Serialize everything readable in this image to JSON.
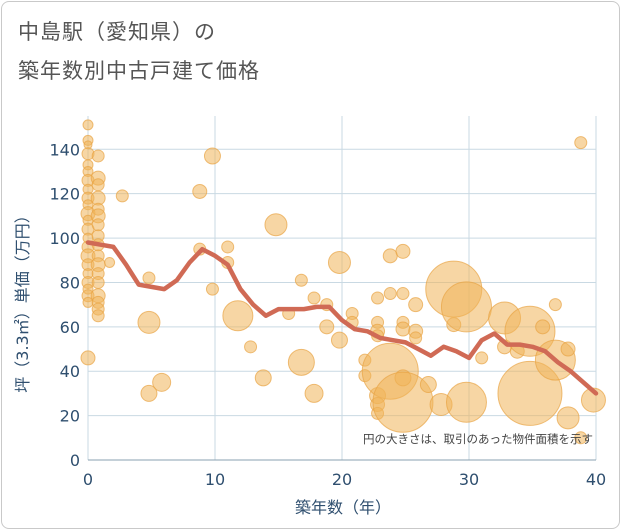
{
  "title": {
    "line1": "中島駅（愛知県）の",
    "line2": "築年数別中古戸建て価格"
  },
  "colors": {
    "bubble": "#f0b45a",
    "bubble_edge": "#e8a445",
    "line": "#d06a55",
    "grid": "#c9d9e3",
    "plot_bg": "#ffffff",
    "axis_text": "#2f4f6f"
  },
  "chart_data": {
    "type": "bubble+line",
    "xlabel": "築年数（年）",
    "ylabel": "坪（3.3㎡）単価（万円）",
    "xlim": [
      0,
      40
    ],
    "ylim": [
      0,
      155
    ],
    "xticks": [
      0,
      10,
      20,
      30,
      40
    ],
    "yticks": [
      0,
      20,
      40,
      60,
      80,
      100,
      120,
      140
    ],
    "annotation": "円の大きさは、取引のあった物件面積を示す",
    "trend": {
      "x": [
        0,
        1,
        2,
        3,
        4,
        5,
        6,
        7,
        8,
        9,
        10,
        11,
        12,
        13,
        14,
        15,
        16,
        17,
        18,
        19,
        20,
        21,
        22,
        23,
        24,
        25,
        26,
        27,
        28,
        29,
        30,
        31,
        32,
        33,
        34,
        35,
        36,
        37,
        38,
        39,
        40
      ],
      "y": [
        98,
        97,
        96,
        88,
        79,
        78,
        77,
        81,
        89,
        95,
        92,
        88,
        77,
        70,
        65,
        68,
        68,
        68,
        69,
        69,
        63,
        59,
        58,
        55,
        54,
        53,
        50,
        47,
        51,
        49,
        46,
        54,
        57,
        52,
        52,
        51,
        49,
        44,
        40,
        35,
        30
      ]
    },
    "bubbles": [
      [
        0,
        151,
        5
      ],
      [
        0,
        144,
        5
      ],
      [
        0,
        142,
        4
      ],
      [
        0,
        138,
        6
      ],
      [
        0,
        133,
        5
      ],
      [
        0,
        130,
        5
      ],
      [
        0,
        126,
        6
      ],
      [
        0,
        122,
        5
      ],
      [
        0,
        118,
        6
      ],
      [
        0,
        115,
        5
      ],
      [
        0,
        111,
        7
      ],
      [
        0,
        108,
        5
      ],
      [
        0,
        104,
        6
      ],
      [
        0,
        100,
        5
      ],
      [
        0,
        96,
        6
      ],
      [
        0,
        92,
        7
      ],
      [
        0,
        88,
        6
      ],
      [
        0,
        84,
        5
      ],
      [
        0,
        80,
        6
      ],
      [
        0,
        77,
        5
      ],
      [
        0,
        74,
        6
      ],
      [
        0,
        71,
        5
      ],
      [
        0,
        46,
        7
      ],
      [
        0.8,
        137,
        6
      ],
      [
        0.8,
        127,
        7
      ],
      [
        0.8,
        124,
        6
      ],
      [
        0.8,
        118,
        7
      ],
      [
        0.8,
        113,
        6
      ],
      [
        0.8,
        110,
        7
      ],
      [
        0.8,
        106,
        6
      ],
      [
        0.8,
        101,
        6
      ],
      [
        0.8,
        97,
        6
      ],
      [
        0.8,
        92,
        6
      ],
      [
        0.8,
        88,
        7
      ],
      [
        0.8,
        84,
        6
      ],
      [
        0.8,
        80,
        6
      ],
      [
        0.8,
        74,
        7
      ],
      [
        0.8,
        71,
        6
      ],
      [
        0.8,
        68,
        6
      ],
      [
        0.8,
        65,
        6
      ],
      [
        1.7,
        89,
        5
      ],
      [
        2.7,
        119,
        6
      ],
      [
        4.8,
        82,
        6
      ],
      [
        4.8,
        62,
        11
      ],
      [
        4.8,
        30,
        8
      ],
      [
        5.8,
        35,
        9
      ],
      [
        8.8,
        121,
        7
      ],
      [
        8.8,
        95,
        6
      ],
      [
        9.8,
        137,
        8
      ],
      [
        9.8,
        77,
        6
      ],
      [
        11.0,
        96,
        6
      ],
      [
        11.0,
        89,
        6
      ],
      [
        11.8,
        65,
        15
      ],
      [
        12.8,
        51,
        6
      ],
      [
        13.8,
        37,
        8
      ],
      [
        14.8,
        106,
        11
      ],
      [
        15.8,
        66,
        6
      ],
      [
        16.8,
        81,
        6
      ],
      [
        16.8,
        44,
        13
      ],
      [
        17.8,
        73,
        6
      ],
      [
        17.8,
        30,
        9
      ],
      [
        18.8,
        70,
        6
      ],
      [
        18.8,
        60,
        7
      ],
      [
        19.8,
        89,
        11
      ],
      [
        19.8,
        54,
        8
      ],
      [
        20.8,
        66,
        6
      ],
      [
        20.8,
        62,
        6
      ],
      [
        21.8,
        45,
        6
      ],
      [
        21.8,
        38,
        6
      ],
      [
        22.8,
        73,
        6
      ],
      [
        22.8,
        62,
        6
      ],
      [
        22.8,
        58,
        7
      ],
      [
        22.8,
        56,
        6
      ],
      [
        22.8,
        29,
        8
      ],
      [
        22.8,
        25,
        7
      ],
      [
        22.8,
        21,
        6
      ],
      [
        23.8,
        92,
        7
      ],
      [
        23.8,
        75,
        6
      ],
      [
        23.8,
        40,
        28
      ],
      [
        24.8,
        94,
        7
      ],
      [
        24.8,
        75,
        6
      ],
      [
        24.8,
        62,
        6
      ],
      [
        24.8,
        59,
        7
      ],
      [
        24.8,
        37,
        8
      ],
      [
        24.8,
        26,
        30
      ],
      [
        25.8,
        70,
        7
      ],
      [
        25.8,
        58,
        7
      ],
      [
        25.8,
        55,
        6
      ],
      [
        26.8,
        34,
        8
      ],
      [
        27.8,
        25,
        11
      ],
      [
        28.8,
        61,
        7
      ],
      [
        28.8,
        77,
        28
      ],
      [
        29.8,
        69,
        25
      ],
      [
        29.8,
        26,
        20
      ],
      [
        31.0,
        46,
        6
      ],
      [
        32.8,
        64,
        16
      ],
      [
        32.8,
        51,
        7
      ],
      [
        33.8,
        49,
        7
      ],
      [
        34.8,
        58,
        25
      ],
      [
        34.8,
        30,
        32
      ],
      [
        35.8,
        60,
        7
      ],
      [
        36.8,
        70,
        6
      ],
      [
        36.8,
        45,
        20
      ],
      [
        37.8,
        50,
        7
      ],
      [
        37.8,
        19,
        11
      ],
      [
        38.8,
        143,
        6
      ],
      [
        38.8,
        10,
        6
      ],
      [
        39.8,
        27,
        12
      ]
    ]
  }
}
